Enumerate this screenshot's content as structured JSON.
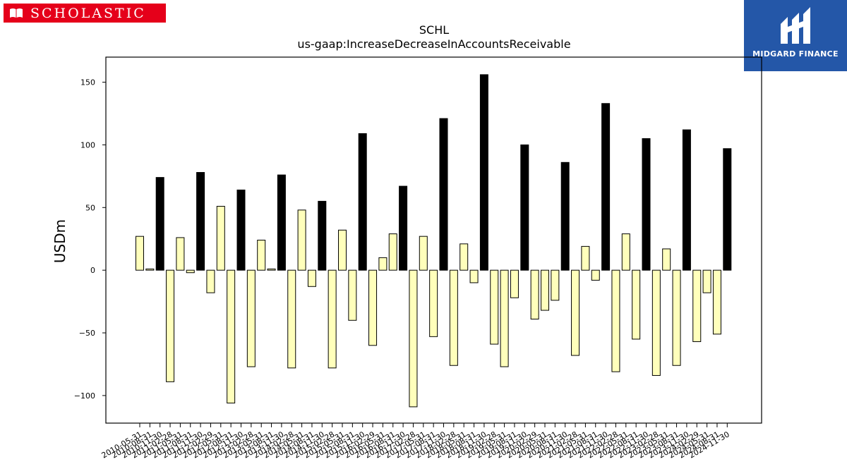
{
  "logos": {
    "left_text": "SCHOLASTIC",
    "left_color": "#e5001a",
    "right_text": "MIDGARD FINANCE",
    "right_color": "#2457a8"
  },
  "chart_data": {
    "type": "bar",
    "title": "SCHL",
    "subtitle": "us-gaap:IncreaseDecreaseInAccountsReceivable",
    "xlabel": "",
    "ylabel": "USDm",
    "ylim": [
      -122,
      170
    ],
    "yticks": [
      -100,
      -50,
      0,
      50,
      100,
      150
    ],
    "grid": false,
    "legend": "none",
    "colors": {
      "quarter": "#ffffbb",
      "annual": "#000000",
      "edge": "#000000"
    },
    "categories": [
      "2010-05-31",
      "2010-08-31",
      "2010-11-30",
      "2011-02-28",
      "2011-05-31",
      "2011-08-31",
      "2011-11-30",
      "2012-02-29",
      "2012-05-31",
      "2012-08-31",
      "2012-11-30",
      "2013-02-28",
      "2013-05-31",
      "2013-08-31",
      "2013-11-30",
      "2014-02-28",
      "2014-05-31",
      "2014-08-31",
      "2014-11-30",
      "2015-02-28",
      "2015-05-31",
      "2015-08-31",
      "2015-11-30",
      "2016-02-29",
      "2016-05-31",
      "2016-08-31",
      "2016-11-30",
      "2017-02-28",
      "2017-05-31",
      "2017-08-31",
      "2017-11-30",
      "2018-02-28",
      "2018-05-31",
      "2018-08-31",
      "2018-11-30",
      "2019-02-28",
      "2019-05-31",
      "2019-08-31",
      "2019-11-30",
      "2020-02-29",
      "2020-05-31",
      "2020-08-31",
      "2020-11-30",
      "2021-02-28",
      "2021-05-31",
      "2021-08-31",
      "2021-11-30",
      "2022-02-28",
      "2022-05-31",
      "2022-08-31",
      "2022-11-30",
      "2023-02-28",
      "2023-05-31",
      "2023-08-31",
      "2023-11-30",
      "2024-02-29",
      "2024-05-31",
      "2024-08-31",
      "2024-11-30"
    ],
    "values": [
      27,
      1,
      74,
      -89,
      26,
      -2,
      78,
      -18,
      51,
      -106,
      64,
      -77,
      24,
      1,
      76,
      -78,
      48,
      -13,
      55,
      -78,
      32,
      -40,
      109,
      -60,
      10,
      29,
      67,
      -109,
      27,
      -53,
      121,
      -76,
      21,
      -10,
      156,
      -59,
      -77,
      -22,
      100,
      -39,
      -32,
      -24,
      86,
      -68,
      19,
      -8,
      133,
      -81,
      29,
      -55,
      105,
      -84,
      17,
      -76,
      112,
      -57,
      -18,
      -51,
      97
    ],
    "annual": [
      false,
      false,
      true,
      false,
      false,
      false,
      true,
      false,
      false,
      false,
      true,
      false,
      false,
      false,
      true,
      false,
      false,
      false,
      true,
      false,
      false,
      false,
      true,
      false,
      false,
      false,
      true,
      false,
      false,
      false,
      true,
      false,
      false,
      false,
      true,
      false,
      false,
      false,
      true,
      false,
      false,
      false,
      true,
      false,
      false,
      false,
      true,
      false,
      false,
      false,
      true,
      false,
      false,
      false,
      true,
      false,
      false,
      false,
      true
    ]
  }
}
